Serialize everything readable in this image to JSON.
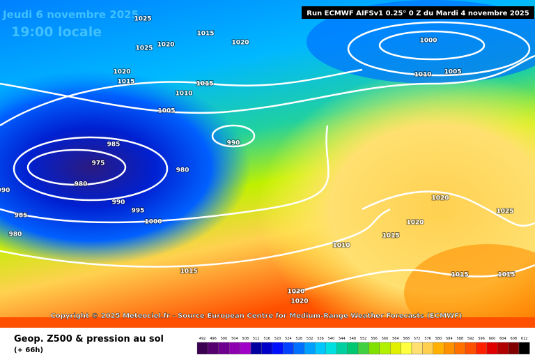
{
  "header": {
    "date": "Jeudi 6 novembre 2025",
    "time": "19:00 locale",
    "run": "Run ECMWF AIFSv1 0.25° 0 Z du Mardi 4 novembre 2025"
  },
  "copyright": "Copyright © 2025 Meteociel.fr - Source European Centre for Medium-Range Weather Forecasts (ECMWF)",
  "footer": {
    "title": "Geop. Z500 & pression au sol",
    "lead": "(+ 66h)"
  },
  "isobars": [
    1025,
    1015,
    1025,
    1020,
    1020,
    1020,
    1015,
    1015,
    1010,
    1005,
    985,
    990,
    975,
    980,
    980,
    990,
    990,
    995,
    1000,
    985,
    980,
    1000,
    1010,
    1005,
    1020,
    1025,
    1020,
    1015,
    1010,
    1015,
    1020,
    1020,
    1015,
    1015
  ],
  "scale": {
    "values": [
      492,
      496,
      500,
      504,
      508,
      512,
      516,
      520,
      524,
      528,
      532,
      536,
      540,
      544,
      548,
      552,
      556,
      560,
      564,
      568,
      572,
      576,
      580,
      584,
      588,
      592,
      596,
      600,
      604,
      608,
      612
    ],
    "colors": [
      "#3c0050",
      "#55006e",
      "#6e0090",
      "#8c00b0",
      "#a000c8",
      "#0000a0",
      "#0000c8",
      "#0010ff",
      "#0040ff",
      "#0070ff",
      "#00a0ff",
      "#00c8ff",
      "#00e0e0",
      "#00d0a0",
      "#00c870",
      "#40d040",
      "#80e000",
      "#b0f000",
      "#e0f000",
      "#ffff40",
      "#ffe070",
      "#ffd050",
      "#ffb000",
      "#ff9000",
      "#ff7000",
      "#ff5000",
      "#ff2000",
      "#e00000",
      "#b00000",
      "#800000",
      "#000000"
    ]
  }
}
